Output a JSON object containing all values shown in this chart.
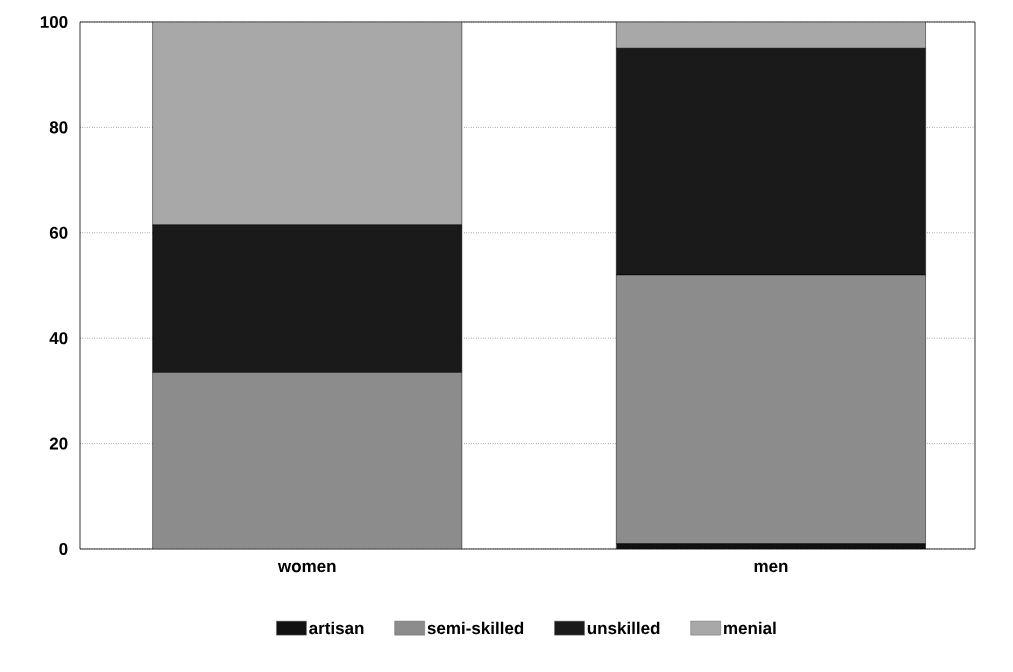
{
  "chart_data": {
    "type": "bar",
    "stacked": true,
    "categories": [
      "women",
      "men"
    ],
    "series": [
      {
        "name": "artisan",
        "color": "#111111",
        "values": [
          0,
          1
        ]
      },
      {
        "name": "semi-skilled",
        "color": "#8c8c8c",
        "values": [
          33.5,
          51
        ]
      },
      {
        "name": "unskilled",
        "color": "#1a1a1a",
        "values": [
          28,
          43
        ]
      },
      {
        "name": "menial",
        "color": "#a8a8a8",
        "values": [
          38.5,
          5
        ]
      }
    ],
    "ylim": [
      0,
      100
    ],
    "yticks": [
      0,
      20,
      40,
      60,
      80,
      100
    ],
    "grid": "y",
    "legend": "bottom"
  }
}
